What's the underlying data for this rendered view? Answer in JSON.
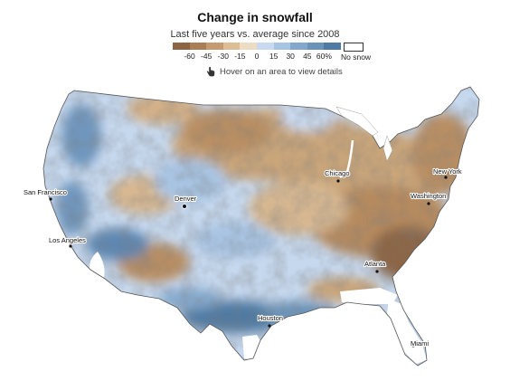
{
  "title": "Change in snowfall",
  "subtitle": "Last five years vs. average since 2008",
  "legend": {
    "colors": [
      "#8c6544",
      "#a97d55",
      "#c49b70",
      "#dcbd94",
      "#ecdcc4",
      "#c9daf0",
      "#a8c4e3",
      "#84a8cc",
      "#6b93b8",
      "#4f7aa3"
    ],
    "ticks": [
      "-60",
      "-45",
      "-30",
      "-15",
      "0",
      "15",
      "30",
      "45",
      "60%"
    ],
    "no_snow_label": "No snow"
  },
  "hint": {
    "icon": "pointer-hand-icon",
    "text": "Hover on an area to view details"
  },
  "cities": [
    {
      "name": "San Francisco"
    },
    {
      "name": "Los Angeles"
    },
    {
      "name": "Denver"
    },
    {
      "name": "Chicago"
    },
    {
      "name": "New York"
    },
    {
      "name": "Washington"
    },
    {
      "name": "Atlanta"
    },
    {
      "name": "Houston"
    },
    {
      "name": "Miami"
    }
  ],
  "colors": {
    "decline": "#c9a57a",
    "increase": "#6f96bd",
    "neutral": "#c6d8ee",
    "no_snow": "#ffffff",
    "border": "#555555"
  }
}
